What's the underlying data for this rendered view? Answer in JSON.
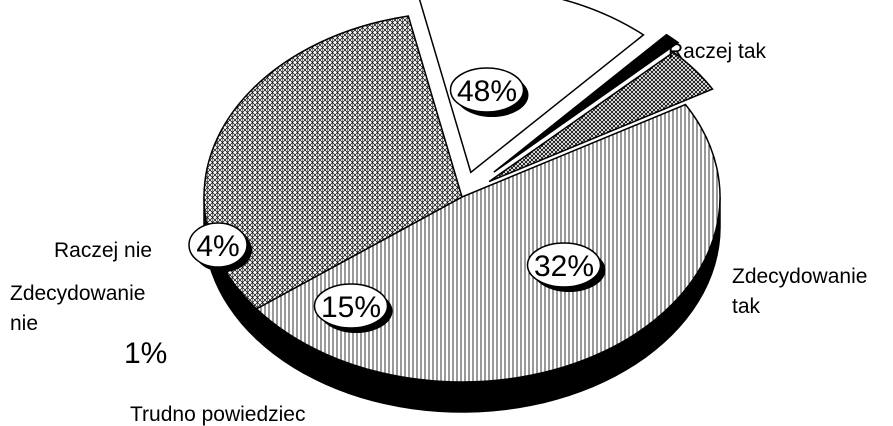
{
  "chart_data": {
    "type": "pie",
    "title": "",
    "categories": [
      "Raczej tak",
      "Zdecydowanie tak",
      "Trudno powiedzieć",
      "Zdecydowanie nie",
      "Raczej nie"
    ],
    "values": [
      48,
      32,
      15,
      1,
      4
    ],
    "value_labels": [
      "48%",
      "32%",
      "15%",
      "1%",
      "4%"
    ],
    "label_lines": [
      [
        "Raczej tak"
      ],
      [
        "Zdecydowanie",
        "tak"
      ],
      [
        "Trudno powiedziec"
      ],
      [
        "Zdecydowanie",
        "nie"
      ],
      [
        "Raczej nie"
      ]
    ],
    "style": "3d-pie, monochrome hatched fills",
    "legend": "none"
  }
}
